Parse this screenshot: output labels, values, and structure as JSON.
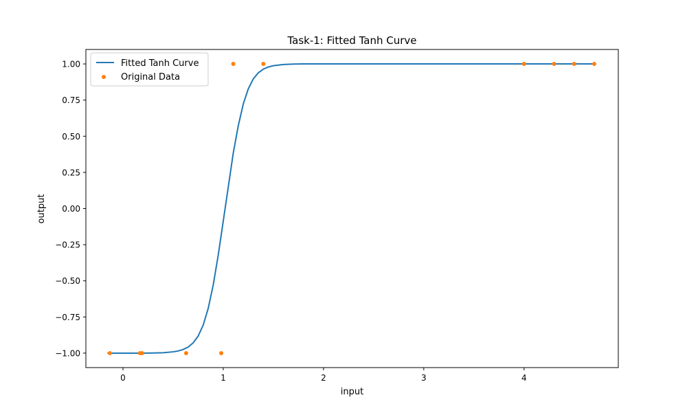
{
  "chart_data": {
    "type": "line",
    "title": "Task-1: Fitted Tanh Curve",
    "xlabel": "input",
    "ylabel": "output",
    "xlim": [
      -0.37,
      4.94
    ],
    "ylim": [
      -1.1,
      1.1
    ],
    "xticks": [
      0,
      1,
      2,
      3,
      4
    ],
    "yticks": [
      -1.0,
      -0.75,
      -0.5,
      -0.25,
      0.0,
      0.25,
      0.5,
      0.75,
      1.0
    ],
    "xtick_labels": [
      "0",
      "1",
      "2",
      "3",
      "4"
    ],
    "ytick_labels": [
      "−1.00",
      "−0.75",
      "−0.50",
      "−0.25",
      "0.00",
      "0.25",
      "0.50",
      "0.75",
      "1.00"
    ],
    "grid": false,
    "legend_position": "top-left",
    "series": [
      {
        "name": "Fitted Tanh Curve",
        "kind": "line",
        "color": "#1f77b4",
        "x": [
          -0.15,
          0.0,
          0.1,
          0.2,
          0.3,
          0.4,
          0.5,
          0.55,
          0.6,
          0.65,
          0.7,
          0.75,
          0.8,
          0.85,
          0.9,
          0.95,
          1.0,
          1.05,
          1.1,
          1.15,
          1.2,
          1.25,
          1.3,
          1.35,
          1.4,
          1.45,
          1.5,
          1.6,
          1.7,
          1.8,
          2.0,
          2.5,
          3.0,
          3.5,
          4.0,
          4.5,
          4.7
        ],
        "y": [
          -1.0,
          -1.0,
          -1.0,
          -1.0,
          -0.999,
          -0.997,
          -0.991,
          -0.985,
          -0.975,
          -0.958,
          -0.929,
          -0.882,
          -0.806,
          -0.691,
          -0.529,
          -0.322,
          -0.088,
          0.148,
          0.384,
          0.573,
          0.723,
          0.828,
          0.897,
          0.939,
          0.964,
          0.979,
          0.988,
          0.996,
          0.999,
          1.0,
          1.0,
          1.0,
          1.0,
          1.0,
          1.0,
          1.0,
          1.0
        ]
      },
      {
        "name": "Original Data",
        "kind": "scatter",
        "color": "#ff7f0e",
        "x": [
          -0.13,
          0.17,
          0.19,
          0.63,
          0.98,
          1.1,
          1.4,
          4.0,
          4.3,
          4.5,
          4.7
        ],
        "y": [
          -1.0,
          -1.0,
          -1.0,
          -1.0,
          -1.0,
          1.0,
          1.0,
          1.0,
          1.0,
          1.0,
          1.0
        ]
      }
    ]
  }
}
